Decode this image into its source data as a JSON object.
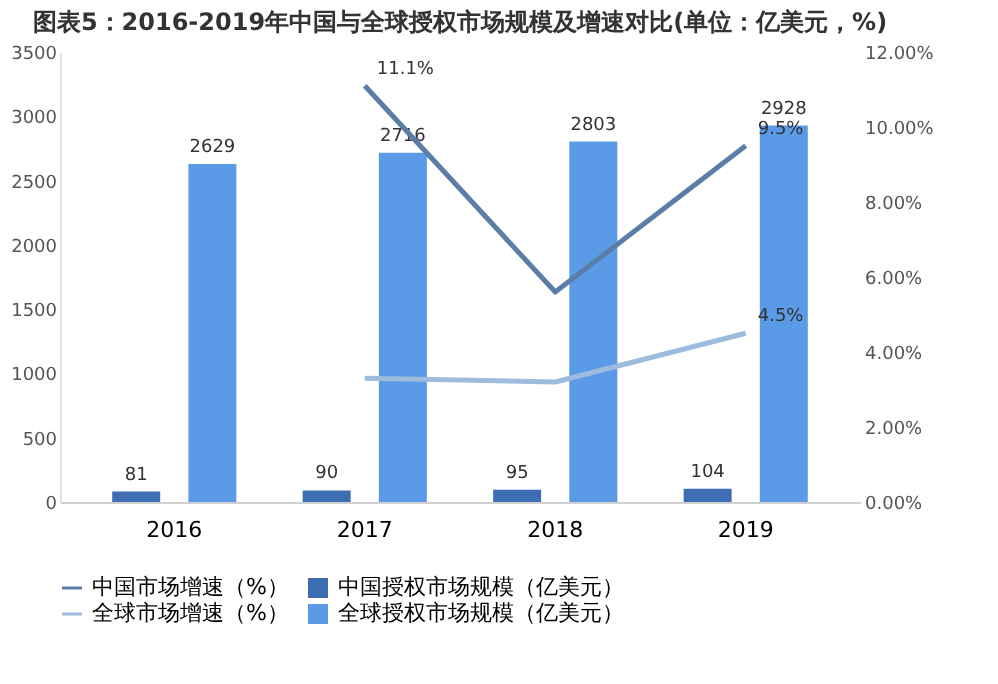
{
  "chart_data": {
    "type": "bar",
    "title": "图表5：2016-2019年中国与全球授权市场规模及增速对比(单位：亿美元，%)",
    "categories": [
      "2016",
      "2017",
      "2018",
      "2019"
    ],
    "series": [
      {
        "name": "中国授权市场规模（亿美元）",
        "color": "#3d6db3",
        "values": [
          81,
          90,
          95,
          104
        ]
      },
      {
        "name": "全球授权市场规模（亿美元）",
        "color": "#5b9ae6",
        "values": [
          2629,
          2716,
          2803,
          2928
        ]
      },
      {
        "name": "中国市场增速（%）",
        "type": "line",
        "axis": "y2",
        "color": "#5b7ea8",
        "values": [
          null,
          11.1,
          5.6,
          9.5
        ],
        "value_labels": [
          null,
          "11.1%",
          null,
          "9.5%"
        ]
      },
      {
        "name": "全球市场增速（%）",
        "type": "line",
        "axis": "y2",
        "color": "#9dbbdc",
        "values": [
          null,
          3.3,
          3.2,
          4.5
        ],
        "value_labels": [
          null,
          null,
          null,
          "4.5%"
        ]
      }
    ],
    "data_labels": true,
    "ylim": [
      0,
      3500
    ],
    "yticks": [
      0,
      500,
      1000,
      1500,
      2000,
      2500,
      3000,
      3500
    ],
    "y2lim": [
      0,
      12
    ],
    "y2ticks": [
      {
        "value": 0,
        "label": "0.00%"
      },
      {
        "value": 2,
        "label": "2.00%"
      },
      {
        "value": 4,
        "label": "4.00%"
      },
      {
        "value": 6,
        "label": "6.00%"
      },
      {
        "value": 8,
        "label": "8.00%"
      },
      {
        "value": 10,
        "label": "10.00%"
      },
      {
        "value": 12,
        "label": "12.00%"
      }
    ],
    "grid": false,
    "legend": "bottom"
  }
}
